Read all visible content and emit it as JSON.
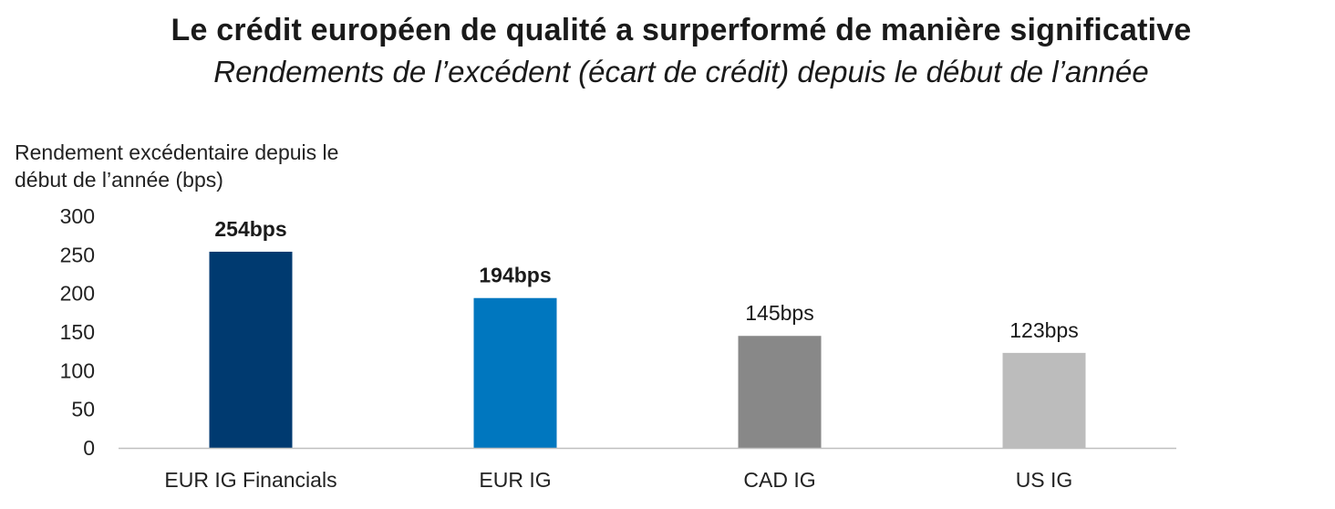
{
  "chart_data": {
    "type": "bar",
    "title": "Le crédit européen de qualité a surperformé de manière significative",
    "subtitle": "Rendements de l’excédent (écart de crédit) depuis le début de l’année",
    "ylabel_lines": [
      "Rendement excédentaire depuis le",
      "début de l’année (bps)"
    ],
    "xlabel": "",
    "categories": [
      "EUR IG Financials",
      "EUR IG",
      "CAD IG",
      "US IG"
    ],
    "values": [
      254,
      194,
      145,
      123
    ],
    "data_labels": [
      "254bps",
      "194bps",
      "145bps",
      "123bps"
    ],
    "data_label_bold": [
      true,
      true,
      false,
      false
    ],
    "colors": [
      "#003a70",
      "#0077bf",
      "#888888",
      "#bcbcbc"
    ],
    "ylim": [
      0,
      300
    ],
    "yticks": [
      0,
      50,
      100,
      150,
      200,
      250,
      300
    ],
    "grid": false,
    "legend": "none"
  }
}
